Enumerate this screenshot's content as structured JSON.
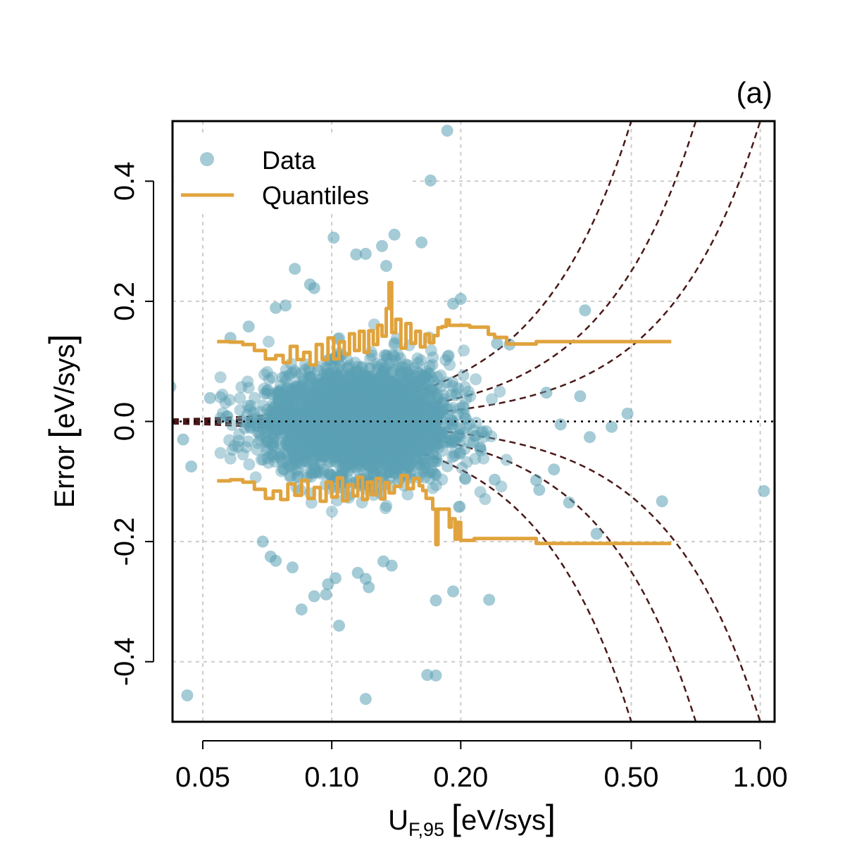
{
  "chart_data": {
    "type": "scatter",
    "panel_label": "(a)",
    "x_scale": "log",
    "xlabel": {
      "main": "U",
      "sub": "F,95",
      "unit": "eV/sys"
    },
    "ylabel": {
      "main": "Error",
      "unit": "eV/sys"
    },
    "xlim": [
      0.0425,
      1.08
    ],
    "ylim": [
      -0.5,
      0.5
    ],
    "x_ticks": [
      0.05,
      0.1,
      0.2,
      0.5,
      1.0
    ],
    "x_tick_labels": [
      "0.05",
      "0.10",
      "0.20",
      "0.50",
      "1.00"
    ],
    "y_ticks": [
      -0.4,
      -0.2,
      0.0,
      0.2,
      0.4
    ],
    "y_tick_labels": [
      "-0.4",
      "-0.2",
      "0.0",
      "0.2",
      "0.4"
    ],
    "grid": true,
    "zero_line": true,
    "legend": {
      "position": "top-left",
      "entries": [
        {
          "label": "Data",
          "kind": "point",
          "color": "#5aa0b4"
        },
        {
          "label": "Quantiles",
          "kind": "line",
          "color": "#e0a33d"
        }
      ]
    },
    "colors": {
      "points": "#5aa0b4",
      "quantiles": "#e0a33d",
      "guides": "#4a1818",
      "grid": "#cccccc"
    },
    "guide_curve_coefficients": [
      0.5,
      1.0,
      2.0
    ],
    "scatter_outliers": [
      {
        "x": 0.186,
        "y": 0.484
      },
      {
        "x": 0.17,
        "y": 0.401
      },
      {
        "x": 0.101,
        "y": 0.306
      },
      {
        "x": 0.14,
        "y": 0.311
      },
      {
        "x": 0.162,
        "y": 0.298
      },
      {
        "x": 0.131,
        "y": 0.292
      },
      {
        "x": 0.114,
        "y": 0.278
      },
      {
        "x": 0.12,
        "y": 0.279
      },
      {
        "x": 0.134,
        "y": 0.259
      },
      {
        "x": 0.082,
        "y": 0.254
      },
      {
        "x": 0.089,
        "y": 0.228
      },
      {
        "x": 0.091,
        "y": 0.222
      },
      {
        "x": 0.2,
        "y": 0.204
      },
      {
        "x": 0.192,
        "y": 0.196
      },
      {
        "x": 0.074,
        "y": 0.189
      },
      {
        "x": 0.078,
        "y": 0.193
      },
      {
        "x": 0.39,
        "y": 0.185
      },
      {
        "x": 0.064,
        "y": 0.158
      },
      {
        "x": 0.058,
        "y": 0.139
      },
      {
        "x": 0.243,
        "y": 0.13
      },
      {
        "x": 0.26,
        "y": 0.128
      },
      {
        "x": 0.042,
        "y": 0.058
      },
      {
        "x": 0.052,
        "y": 0.039
      },
      {
        "x": 0.317,
        "y": 0.048
      },
      {
        "x": 0.38,
        "y": 0.042
      },
      {
        "x": 0.49,
        "y": 0.013
      },
      {
        "x": 0.45,
        "y": -0.009
      },
      {
        "x": 0.342,
        "y": -0.005
      },
      {
        "x": 0.4,
        "y": -0.026
      },
      {
        "x": 0.045,
        "y": -0.03
      },
      {
        "x": 0.047,
        "y": -0.075
      },
      {
        "x": 0.33,
        "y": -0.08
      },
      {
        "x": 0.3,
        "y": -0.098
      },
      {
        "x": 0.305,
        "y": -0.114
      },
      {
        "x": 0.358,
        "y": -0.135
      },
      {
        "x": 0.59,
        "y": -0.133
      },
      {
        "x": 1.02,
        "y": -0.116
      },
      {
        "x": 0.24,
        "y": -0.097
      },
      {
        "x": 0.415,
        "y": -0.187
      },
      {
        "x": 0.069,
        "y": -0.2
      },
      {
        "x": 0.072,
        "y": -0.225
      },
      {
        "x": 0.074,
        "y": -0.232
      },
      {
        "x": 0.081,
        "y": -0.243
      },
      {
        "x": 0.115,
        "y": -0.252
      },
      {
        "x": 0.12,
        "y": -0.262
      },
      {
        "x": 0.122,
        "y": -0.276
      },
      {
        "x": 0.138,
        "y": -0.24
      },
      {
        "x": 0.132,
        "y": -0.233
      },
      {
        "x": 0.102,
        "y": -0.261
      },
      {
        "x": 0.098,
        "y": -0.271
      },
      {
        "x": 0.091,
        "y": -0.291
      },
      {
        "x": 0.097,
        "y": -0.288
      },
      {
        "x": 0.104,
        "y": -0.34
      },
      {
        "x": 0.085,
        "y": -0.313
      },
      {
        "x": 0.175,
        "y": -0.298
      },
      {
        "x": 0.192,
        "y": -0.283
      },
      {
        "x": 0.233,
        "y": -0.297
      },
      {
        "x": 0.167,
        "y": -0.422
      },
      {
        "x": 0.175,
        "y": -0.423
      },
      {
        "x": 0.12,
        "y": -0.462
      },
      {
        "x": 0.046,
        "y": -0.456
      }
    ],
    "quantile_upper": [
      [
        0.054,
        0.133
      ],
      [
        0.058,
        0.132
      ],
      [
        0.062,
        0.128
      ],
      [
        0.066,
        0.118
      ],
      [
        0.07,
        0.104
      ],
      [
        0.074,
        0.11
      ],
      [
        0.077,
        0.098
      ],
      [
        0.08,
        0.125
      ],
      [
        0.083,
        0.103
      ],
      [
        0.086,
        0.115
      ],
      [
        0.089,
        0.094
      ],
      [
        0.092,
        0.128
      ],
      [
        0.095,
        0.103
      ],
      [
        0.098,
        0.139
      ],
      [
        0.101,
        0.104
      ],
      [
        0.104,
        0.133
      ],
      [
        0.107,
        0.112
      ],
      [
        0.11,
        0.146
      ],
      [
        0.113,
        0.118
      ],
      [
        0.116,
        0.15
      ],
      [
        0.119,
        0.115
      ],
      [
        0.122,
        0.151
      ],
      [
        0.125,
        0.128
      ],
      [
        0.128,
        0.16
      ],
      [
        0.131,
        0.142
      ],
      [
        0.134,
        0.188
      ],
      [
        0.136,
        0.231
      ],
      [
        0.138,
        0.148
      ],
      [
        0.141,
        0.17
      ],
      [
        0.145,
        0.122
      ],
      [
        0.149,
        0.163
      ],
      [
        0.153,
        0.13
      ],
      [
        0.157,
        0.15
      ],
      [
        0.161,
        0.124
      ],
      [
        0.165,
        0.145
      ],
      [
        0.169,
        0.131
      ],
      [
        0.173,
        0.143
      ],
      [
        0.177,
        0.156
      ],
      [
        0.181,
        0.158
      ],
      [
        0.185,
        0.169
      ],
      [
        0.188,
        0.16
      ],
      [
        0.205,
        0.16
      ],
      [
        0.21,
        0.157
      ],
      [
        0.228,
        0.157
      ],
      [
        0.232,
        0.145
      ],
      [
        0.24,
        0.14
      ],
      [
        0.256,
        0.129
      ],
      [
        0.285,
        0.129
      ],
      [
        0.3,
        0.133
      ],
      [
        0.62,
        0.133
      ]
    ],
    "quantile_lower": [
      [
        0.054,
        -0.099
      ],
      [
        0.058,
        -0.097
      ],
      [
        0.062,
        -0.101
      ],
      [
        0.066,
        -0.113
      ],
      [
        0.07,
        -0.128
      ],
      [
        0.073,
        -0.116
      ],
      [
        0.076,
        -0.13
      ],
      [
        0.079,
        -0.104
      ],
      [
        0.082,
        -0.123
      ],
      [
        0.085,
        -0.098
      ],
      [
        0.088,
        -0.128
      ],
      [
        0.091,
        -0.11
      ],
      [
        0.094,
        -0.133
      ],
      [
        0.097,
        -0.101
      ],
      [
        0.1,
        -0.126
      ],
      [
        0.103,
        -0.094
      ],
      [
        0.106,
        -0.132
      ],
      [
        0.109,
        -0.105
      ],
      [
        0.112,
        -0.124
      ],
      [
        0.115,
        -0.093
      ],
      [
        0.118,
        -0.13
      ],
      [
        0.121,
        -0.101
      ],
      [
        0.124,
        -0.122
      ],
      [
        0.127,
        -0.095
      ],
      [
        0.13,
        -0.129
      ],
      [
        0.133,
        -0.102
      ],
      [
        0.136,
        -0.119
      ],
      [
        0.14,
        -0.108
      ],
      [
        0.145,
        -0.09
      ],
      [
        0.15,
        -0.112
      ],
      [
        0.155,
        -0.095
      ],
      [
        0.16,
        -0.107
      ],
      [
        0.163,
        -0.115
      ],
      [
        0.166,
        -0.128
      ],
      [
        0.172,
        -0.146
      ],
      [
        0.175,
        -0.205
      ],
      [
        0.177,
        -0.146
      ],
      [
        0.186,
        -0.146
      ],
      [
        0.188,
        -0.176
      ],
      [
        0.19,
        -0.162
      ],
      [
        0.194,
        -0.196
      ],
      [
        0.197,
        -0.168
      ],
      [
        0.2,
        -0.198
      ],
      [
        0.215,
        -0.195
      ],
      [
        0.29,
        -0.195
      ],
      [
        0.3,
        -0.203
      ],
      [
        0.62,
        -0.203
      ]
    ]
  }
}
